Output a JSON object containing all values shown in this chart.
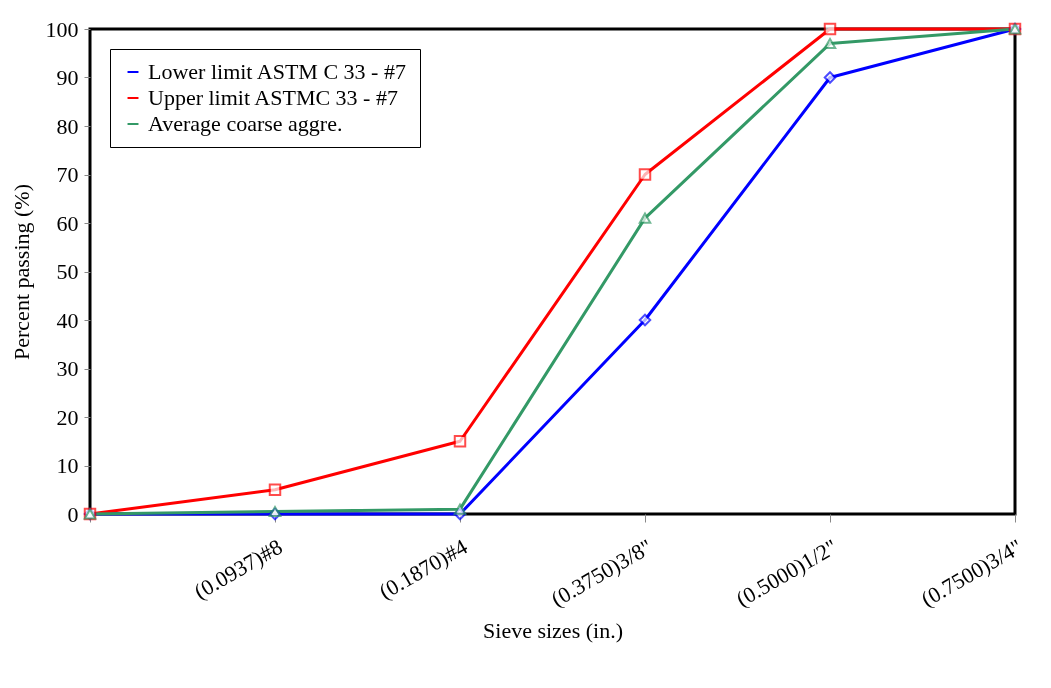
{
  "chart_data": {
    "type": "line",
    "xlabel": "Sieve sizes (in.)",
    "ylabel": "Percent passing (%)",
    "categories": [
      null,
      "(0.0937)#8",
      "(0.1870)#4",
      "(0.3750)3/8\"",
      "(0.5000)1/2\"",
      "(0.7500)3/4\""
    ],
    "ylim": [
      0,
      100
    ],
    "yticks": [
      0,
      10,
      20,
      30,
      40,
      50,
      60,
      70,
      80,
      90,
      100
    ],
    "grid": false,
    "legend": "top left",
    "series": [
      {
        "name": "Lower limit ASTM C 33 - #7",
        "color": "#0000ff",
        "marker": "diamond",
        "values": [
          0,
          0,
          0,
          40,
          90,
          100
        ]
      },
      {
        "name": "Upper limit ASTMC 33 - #7",
        "color": "#ff0000",
        "marker": "square",
        "values": [
          0,
          5,
          15,
          70,
          100,
          100
        ]
      },
      {
        "name": "Average coarse aggre.",
        "color": "#339966",
        "marker": "triangle",
        "values": [
          0,
          0.5,
          1,
          61,
          97,
          100
        ]
      }
    ]
  }
}
